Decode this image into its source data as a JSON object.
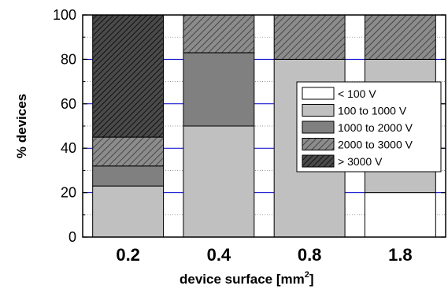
{
  "chart_data": {
    "type": "bar",
    "stacked": true,
    "title": "",
    "xlabel": "device surface  [mm",
    "xlabel_sup": "2",
    "xlabel_close": "]",
    "ylabel": "% devices",
    "ylim": [
      0,
      100
    ],
    "yticks": [
      "0",
      "20",
      "40",
      "60",
      "80",
      "100"
    ],
    "categories": [
      "0.2",
      "0.4",
      "0.8",
      "1.8"
    ],
    "grid": true,
    "legend_position": "right",
    "series": [
      {
        "name": "< 100 V",
        "values": [
          0,
          0,
          0,
          20
        ],
        "fill": "#ffffff",
        "pattern": "none"
      },
      {
        "name": "100 to 1000 V",
        "values": [
          23,
          50,
          80,
          60
        ],
        "fill": "#c0c0c0",
        "pattern": "none"
      },
      {
        "name": "1000 to 2000 V",
        "values": [
          9,
          33,
          0,
          0
        ],
        "fill": "#808080",
        "pattern": "none"
      },
      {
        "name": "2000 to 3000 V",
        "values": [
          13,
          17,
          20,
          20
        ],
        "fill": "#7f7f7f",
        "pattern": "hatch-light"
      },
      {
        "name": "> 3000 V",
        "values": [
          55,
          0,
          0,
          0
        ],
        "fill": "#3f3f3f",
        "pattern": "hatch-dark"
      }
    ]
  }
}
